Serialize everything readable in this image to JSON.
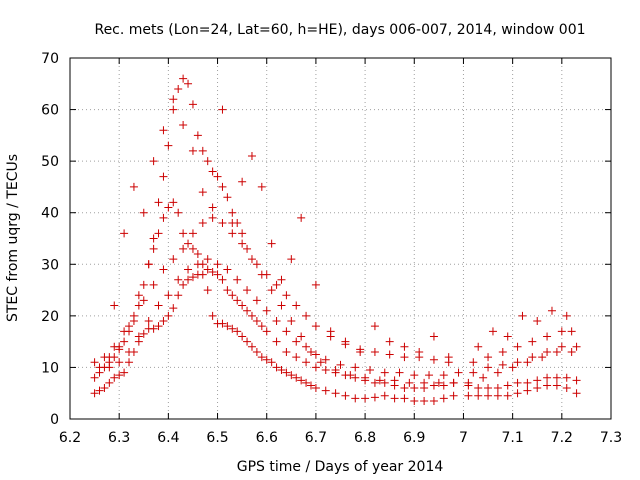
{
  "chart_data": {
    "type": "scatter",
    "title": "Rec. mets (Lon=24, Lat=60, h=HE), days 006-007, 2014, window 001",
    "xlabel": "GPS time / Days of year 2014",
    "ylabel": "STEC from uqrg / TECUs",
    "xlim": [
      6.2,
      7.3
    ],
    "ylim": [
      0,
      70
    ],
    "xticks": [
      "6.2",
      "6.3",
      "6.4",
      "6.5",
      "6.6",
      "6.7",
      "6.8",
      "6.9",
      "7",
      "7.1",
      "7.2",
      "7.3"
    ],
    "yticks": [
      "0",
      "10",
      "20",
      "30",
      "40",
      "50",
      "60",
      "70"
    ],
    "grid": true,
    "marker": "plus",
    "color": "#cc0000",
    "series": [
      {
        "x": [
          6.25,
          6.26,
          6.27,
          6.28,
          6.29,
          6.3,
          6.31,
          6.32,
          6.33,
          6.34,
          6.35,
          6.36,
          6.37,
          6.38,
          6.39,
          6.4,
          6.41,
          6.42,
          6.43,
          6.44,
          6.45,
          6.46,
          6.47,
          6.48,
          6.49,
          6.5,
          6.51,
          6.52,
          6.53,
          6.54,
          6.55,
          6.56,
          6.57,
          6.58,
          6.59,
          6.6,
          6.61,
          6.62,
          6.63,
          6.64,
          6.65,
          6.66,
          6.67,
          6.68,
          6.69,
          6.7,
          6.72,
          6.74,
          6.76,
          6.78,
          6.8,
          6.82,
          6.84,
          6.86,
          6.88,
          6.9,
          6.92,
          6.94,
          6.96,
          6.98,
          7.01,
          7.03,
          7.05,
          7.07,
          7.09,
          7.11,
          7.13,
          7.15,
          7.17,
          7.19,
          7.21,
          7.23
        ],
        "y": [
          5,
          5.5,
          6,
          7,
          8,
          8.5,
          9,
          11,
          13,
          15,
          16.5,
          17.5,
          17.5,
          18,
          19,
          20,
          21.5,
          24,
          26,
          27,
          27.5,
          28,
          28,
          25,
          20,
          18.5,
          18.5,
          18,
          17.5,
          17,
          16,
          15,
          14,
          13,
          12,
          11.5,
          11,
          10,
          9.5,
          9,
          8.5,
          8,
          7.5,
          7,
          6.5,
          6,
          5.5,
          5,
          4.5,
          4,
          4,
          4.2,
          4.5,
          4,
          4,
          3.5,
          3.5,
          3.5,
          4,
          4.5,
          4.5,
          4.5,
          4.5,
          4.5,
          4.5,
          5,
          5.5,
          6,
          6.5,
          6.5,
          6,
          5
        ]
      },
      {
        "x": [
          6.25,
          6.26,
          6.27,
          6.28,
          6.29,
          6.3,
          6.31,
          6.32,
          6.33,
          6.34,
          6.35,
          6.36,
          6.37,
          6.38,
          6.39,
          6.4,
          6.41,
          6.42,
          6.43,
          6.44,
          6.45,
          6.46,
          6.47,
          6.48,
          6.49,
          6.5,
          6.51,
          6.52,
          6.53,
          6.54,
          6.55,
          6.56,
          6.57,
          6.58,
          6.59,
          6.6,
          6.62,
          6.64,
          6.66,
          6.68,
          6.7,
          6.72,
          6.74,
          6.76,
          6.78,
          6.8,
          6.82,
          6.84,
          6.86,
          6.88,
          6.9,
          6.92,
          6.94,
          6.96,
          6.98,
          7.01,
          7.03,
          7.05,
          7.07,
          7.09,
          7.11,
          7.13,
          7.15,
          7.17,
          7.19,
          7.21,
          7.23
        ],
        "y": [
          8,
          9,
          10,
          11,
          12,
          13.5,
          15,
          17,
          19,
          22,
          26,
          30,
          33,
          36,
          39,
          41,
          42,
          40,
          36,
          34,
          33,
          32,
          30,
          29,
          28.5,
          28,
          27,
          25,
          24,
          23,
          22,
          21,
          20,
          19,
          18,
          17,
          15,
          13,
          12,
          11,
          10,
          9.5,
          9,
          8.5,
          8,
          7.5,
          7,
          7,
          6.5,
          6,
          6,
          6,
          6.5,
          6.5,
          7,
          6.5,
          6,
          6,
          6,
          6.5,
          7,
          7,
          7.5,
          8,
          8,
          8,
          7.5
        ]
      },
      {
        "x": [
          6.28,
          6.3,
          6.32,
          6.34,
          6.36,
          6.37,
          6.38,
          6.39,
          6.4,
          6.41,
          6.42,
          6.43,
          6.44,
          6.45,
          6.46,
          6.47,
          6.48,
          6.49,
          6.5,
          6.51,
          6.52,
          6.53,
          6.54,
          6.55,
          6.56,
          6.58,
          6.6,
          6.62,
          6.64,
          6.66,
          6.68,
          6.7,
          6.73,
          6.76,
          6.79,
          6.82,
          6.85,
          6.88,
          6.91,
          6.94,
          6.97,
          7.02,
          7.05,
          7.08,
          7.11,
          7.14,
          7.17,
          7.2,
          7.22
        ],
        "y": [
          12,
          14,
          18,
          24,
          30,
          35,
          42,
          47,
          53,
          60,
          64,
          66,
          65,
          61,
          55,
          52,
          50,
          48,
          47,
          45,
          43,
          40,
          38,
          36,
          33,
          30,
          28,
          26,
          24,
          22,
          20,
          18,
          16,
          14.5,
          13.5,
          13,
          12.5,
          12,
          12,
          11.5,
          11,
          11,
          12,
          13,
          14,
          15,
          16,
          17,
          17
        ]
      },
      {
        "x": [
          6.25,
          6.27,
          6.29,
          6.31,
          6.33,
          6.35,
          6.37,
          6.39,
          6.41,
          6.43,
          6.45,
          6.47,
          6.49,
          6.51,
          6.53,
          6.55,
          6.57,
          6.59,
          6.61,
          6.63,
          6.65,
          6.67,
          6.69,
          6.71,
          6.74,
          6.77,
          6.8,
          6.83,
          6.86,
          6.89,
          6.92,
          6.95,
          6.98,
          7.01,
          7.04,
          7.07,
          7.1,
          7.13,
          7.16,
          7.19,
          7.22
        ],
        "y": [
          11,
          12,
          14,
          17,
          20,
          23,
          26,
          29,
          31,
          33,
          36,
          38,
          39,
          38,
          36,
          34,
          31,
          28,
          25,
          22,
          19,
          16,
          13,
          11,
          9.5,
          8.5,
          8,
          7.5,
          7.5,
          7,
          7,
          7,
          7,
          7,
          8,
          9,
          10,
          11,
          12,
          13,
          13
        ]
      },
      {
        "x": [
          6.26,
          6.28,
          6.3,
          6.32,
          6.34,
          6.36,
          6.38,
          6.4,
          6.42,
          6.44,
          6.46,
          6.48,
          6.5,
          6.52,
          6.54,
          6.56,
          6.58,
          6.6,
          6.62,
          6.64,
          6.66,
          6.68,
          6.7,
          6.72,
          6.75,
          6.78,
          6.81,
          6.84,
          6.87,
          6.9,
          6.93,
          6.96,
          6.99,
          7.02,
          7.05,
          7.08,
          7.11,
          7.14,
          7.17,
          7.2,
          7.23
        ],
        "y": [
          10,
          10,
          11,
          13,
          16,
          19,
          22,
          24,
          27,
          29,
          30,
          31,
          30,
          29,
          27,
          25,
          23,
          21,
          19,
          17,
          15,
          14,
          12.5,
          11.5,
          10.5,
          10,
          9.5,
          9,
          9,
          8.5,
          8.5,
          8.5,
          9,
          9,
          10,
          10.5,
          11,
          12,
          13,
          14,
          14
        ]
      },
      {
        "x": [
          6.29,
          6.31,
          6.33,
          6.35,
          6.37,
          6.39,
          6.41,
          6.43,
          6.45,
          6.47,
          6.49,
          6.51,
          6.53,
          6.55,
          6.57,
          6.59,
          6.61,
          6.63,
          6.65,
          6.67,
          6.7,
          6.73,
          6.76,
          6.79,
          6.82,
          6.85,
          6.88,
          6.91,
          6.94,
          6.97,
          7.03,
          7.06,
          7.09,
          7.12,
          7.15,
          7.18,
          7.21
        ],
        "y": [
          22,
          36,
          45,
          40,
          50,
          56,
          62,
          57,
          52,
          44,
          41,
          60,
          38,
          46,
          51,
          45,
          34,
          27,
          31,
          39,
          26,
          17,
          15,
          13,
          18,
          15,
          14,
          13,
          16,
          12,
          14,
          17,
          16,
          20,
          19,
          21,
          20
        ]
      }
    ]
  }
}
